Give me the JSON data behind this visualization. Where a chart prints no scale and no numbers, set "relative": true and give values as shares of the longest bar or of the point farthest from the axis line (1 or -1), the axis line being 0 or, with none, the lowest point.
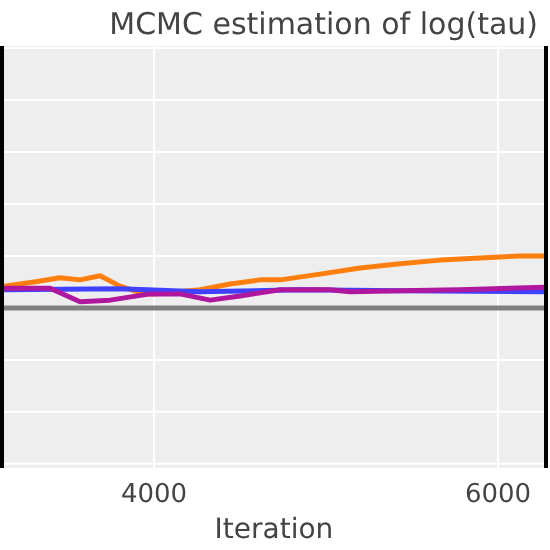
{
  "chart_data": {
    "type": "line",
    "title": "MCMC estimation of log(tau)",
    "xlabel": "Iteration",
    "relative": true,
    "xlim": [
      3116,
      6279
    ],
    "xticks": [
      4000,
      6000
    ],
    "grid": true,
    "series": [
      {
        "color": "#ff7f0e",
        "x": [
          3128,
          3302,
          3453,
          3570,
          3686,
          3802,
          3942,
          4000,
          4267,
          4442,
          4616,
          4733,
          4965,
          5198,
          5430,
          5663,
          5895,
          6128,
          6275
        ],
        "values": [
          0.42,
          0.5,
          0.58,
          0.54,
          0.62,
          0.42,
          0.27,
          0.27,
          0.35,
          0.46,
          0.54,
          0.54,
          0.65,
          0.77,
          0.85,
          0.92,
          0.96,
          1,
          1
        ]
      },
      {
        "color": "#4040ff",
        "x": [
          3128,
          3802,
          4267,
          4849,
          5430,
          6275
        ],
        "values": [
          0.35,
          0.37,
          0.31,
          0.35,
          0.33,
          0.31
        ]
      },
      {
        "color": "#b0179f",
        "x": [
          3128,
          3395,
          3570,
          3744,
          3977,
          4151,
          4326,
          4500,
          4733,
          5023,
          5140,
          5430,
          5779,
          6275
        ],
        "values": [
          0.38,
          0.38,
          0.12,
          0.15,
          0.27,
          0.27,
          0.15,
          0.23,
          0.35,
          0.35,
          0.31,
          0.33,
          0.35,
          0.4
        ]
      }
    ],
    "ref_lines": [
      {
        "axis": "y",
        "value": 0,
        "color": "#808080"
      }
    ]
  }
}
